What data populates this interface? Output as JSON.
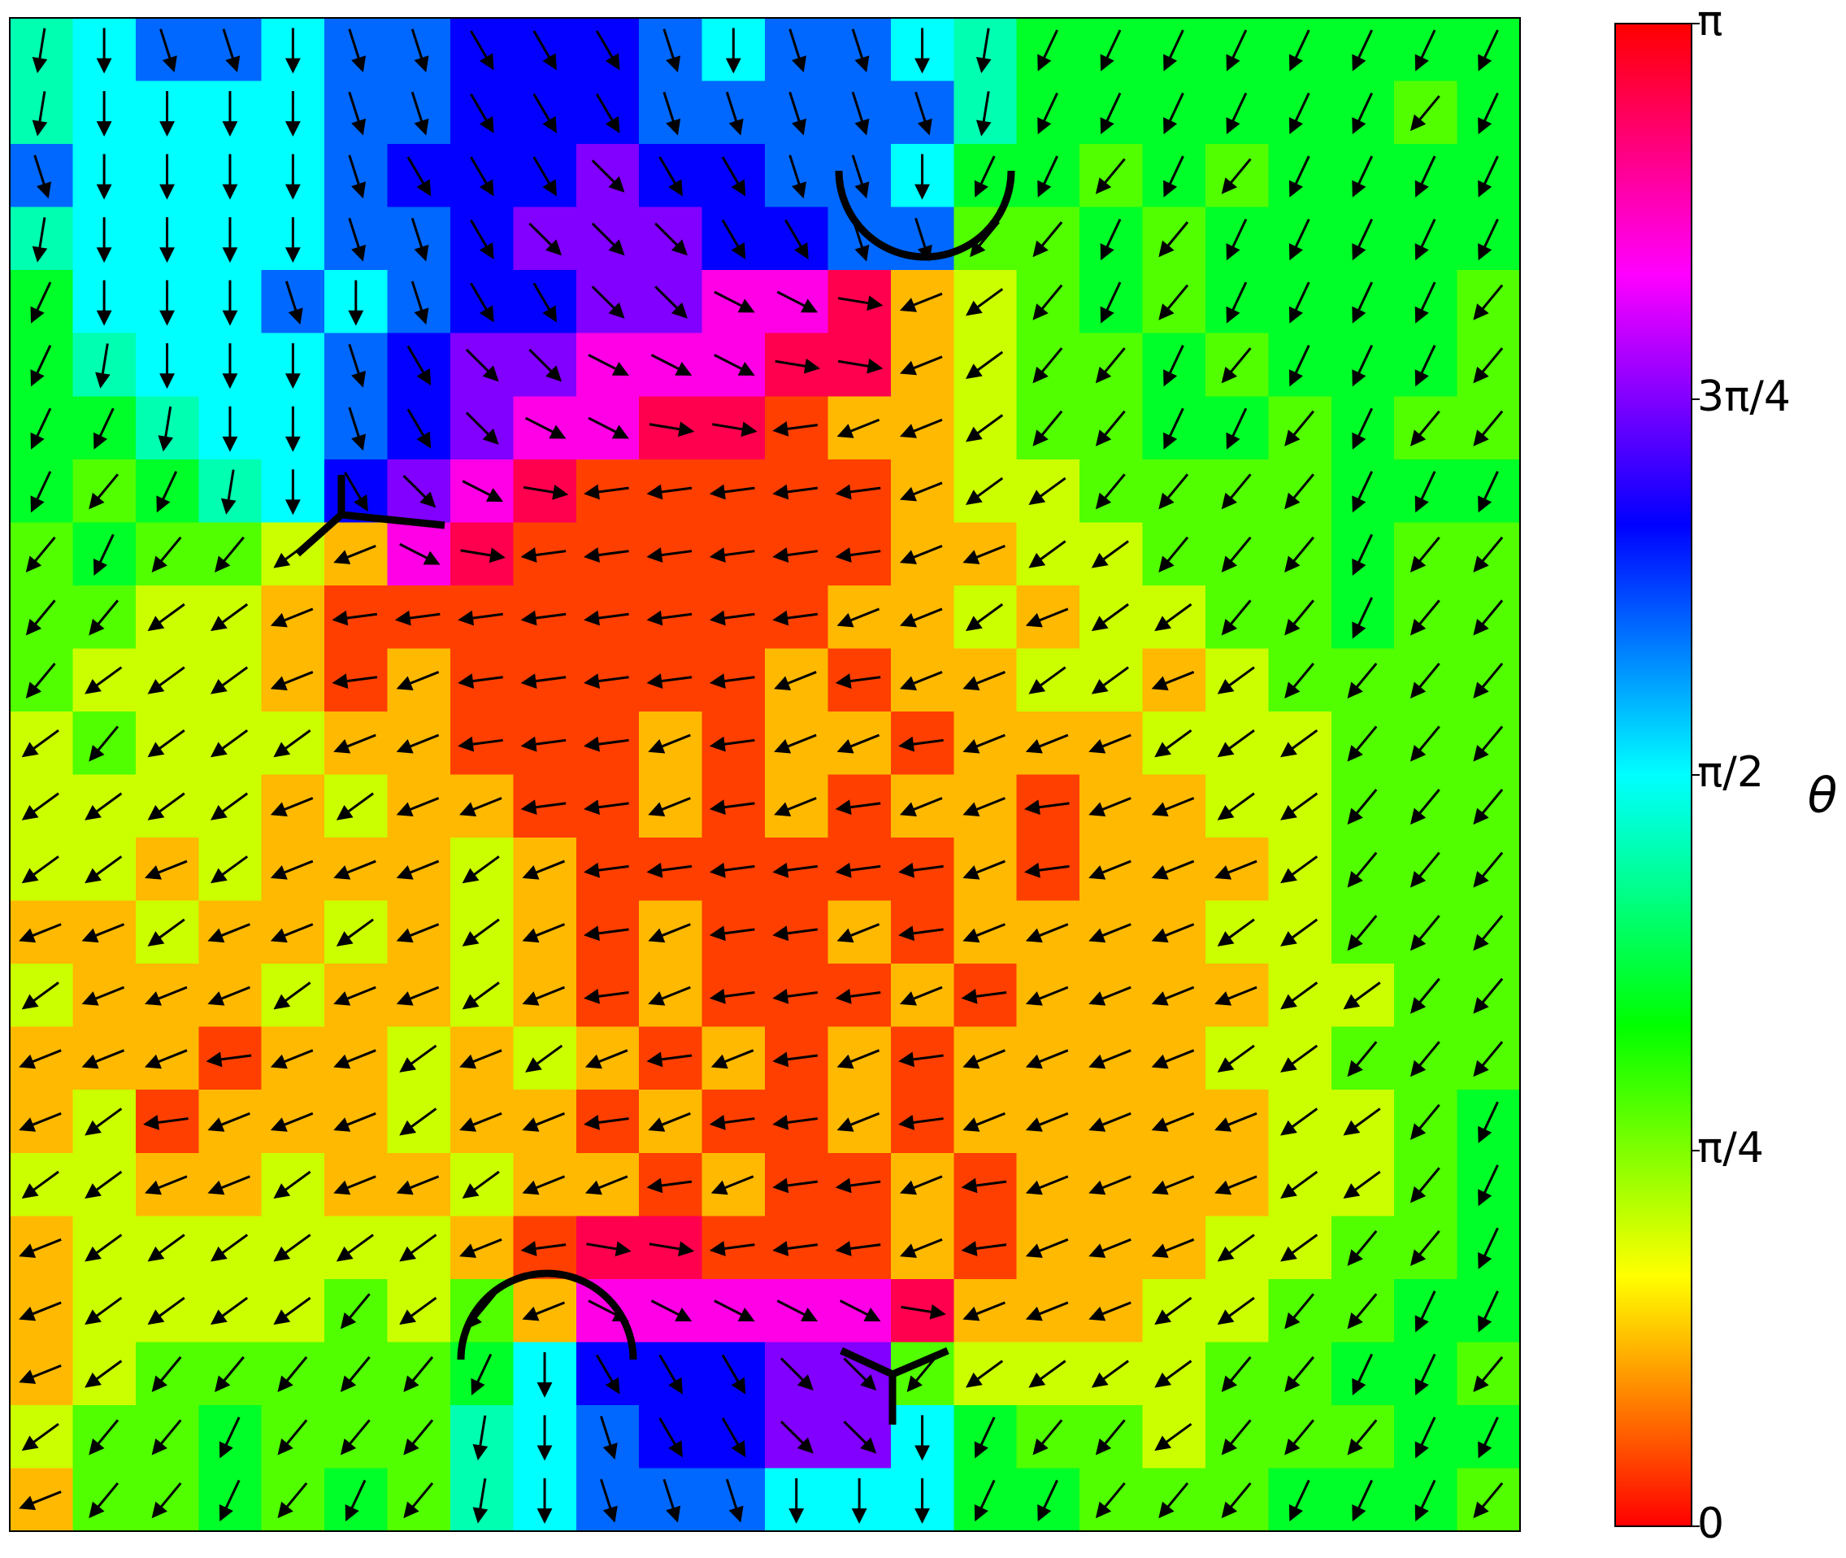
{
  "chart_data": {
    "type": "heatmap",
    "quiver": true,
    "colormap": [
      "#ff0000",
      "#ffff00",
      "#00ff00",
      "#00ffff",
      "#0000ff",
      "#ff00ff",
      "#ff0000"
    ],
    "clim": [
      0,
      3.1416
    ],
    "colorbar": {
      "label": "θ",
      "ticks": [
        0,
        {
          "value": 0.7854,
          "label": "π/4"
        },
        {
          "value": 1.5708,
          "label": "π/2"
        },
        {
          "value": 2.3562,
          "label": "3π/4"
        },
        {
          "value": 3.1416,
          "label": "π"
        }
      ]
    },
    "values": [
      [
        1.41,
        1.57,
        1.88,
        1.88,
        1.57,
        1.88,
        1.88,
        2.1,
        2.1,
        2.1,
        1.88,
        1.57,
        1.88,
        1.88,
        1.57,
        1.41,
        1.13,
        1.13,
        1.13,
        1.13,
        1.13,
        1.13,
        1.13,
        1.13
      ],
      [
        1.41,
        1.57,
        1.57,
        1.57,
        1.57,
        1.88,
        1.88,
        2.1,
        2.1,
        2.1,
        1.88,
        1.88,
        1.88,
        1.88,
        1.88,
        1.41,
        1.13,
        1.13,
        1.13,
        1.13,
        1.13,
        1.13,
        0.88,
        1.13
      ],
      [
        1.88,
        1.57,
        1.57,
        1.57,
        1.57,
        1.88,
        2.1,
        2.1,
        2.1,
        2.36,
        2.1,
        2.1,
        1.88,
        1.88,
        1.57,
        1.13,
        1.13,
        0.88,
        1.13,
        0.88,
        1.13,
        1.13,
        1.13,
        1.13
      ],
      [
        1.41,
        1.57,
        1.57,
        1.57,
        1.57,
        1.88,
        1.88,
        2.1,
        2.36,
        2.36,
        2.36,
        2.1,
        2.1,
        1.88,
        1.88,
        0.88,
        0.88,
        1.13,
        0.88,
        1.13,
        1.13,
        1.13,
        1.13,
        1.13
      ],
      [
        1.13,
        1.57,
        1.57,
        1.57,
        1.88,
        1.57,
        1.88,
        2.1,
        2.1,
        2.36,
        2.36,
        2.67,
        2.67,
        2.98,
        0.38,
        0.63,
        0.88,
        1.13,
        0.88,
        1.13,
        1.13,
        1.13,
        1.13,
        0.88
      ],
      [
        1.13,
        1.41,
        1.57,
        1.57,
        1.57,
        1.88,
        2.1,
        2.36,
        2.36,
        2.67,
        2.67,
        2.67,
        2.98,
        2.98,
        0.38,
        0.63,
        0.88,
        0.88,
        1.13,
        0.88,
        1.13,
        1.13,
        1.13,
        0.88
      ],
      [
        1.13,
        1.13,
        1.41,
        1.57,
        1.57,
        1.88,
        2.1,
        2.36,
        2.67,
        2.67,
        2.98,
        2.98,
        0.13,
        0.38,
        0.38,
        0.63,
        0.88,
        0.88,
        1.13,
        1.13,
        0.88,
        1.13,
        0.88,
        0.88
      ],
      [
        1.13,
        0.88,
        1.13,
        1.41,
        1.57,
        2.1,
        2.36,
        2.67,
        2.98,
        0.13,
        0.13,
        0.13,
        0.13,
        0.13,
        0.38,
        0.63,
        0.63,
        0.88,
        0.88,
        0.88,
        0.88,
        1.13,
        1.13,
        1.13
      ],
      [
        0.88,
        1.13,
        0.88,
        0.88,
        0.63,
        0.38,
        2.67,
        2.98,
        0.13,
        0.13,
        0.13,
        0.13,
        0.13,
        0.13,
        0.38,
        0.38,
        0.63,
        0.63,
        0.88,
        0.88,
        0.88,
        1.13,
        0.88,
        0.88
      ],
      [
        0.88,
        0.88,
        0.63,
        0.63,
        0.38,
        0.13,
        0.13,
        0.13,
        0.13,
        0.13,
        0.13,
        0.13,
        0.13,
        0.38,
        0.38,
        0.63,
        0.38,
        0.63,
        0.63,
        0.88,
        0.88,
        1.13,
        0.88,
        0.88
      ],
      [
        0.88,
        0.63,
        0.63,
        0.63,
        0.38,
        0.13,
        0.38,
        0.13,
        0.13,
        0.13,
        0.13,
        0.13,
        0.38,
        0.13,
        0.38,
        0.38,
        0.63,
        0.63,
        0.38,
        0.63,
        0.88,
        0.88,
        0.88,
        0.88
      ],
      [
        0.63,
        0.88,
        0.63,
        0.63,
        0.63,
        0.38,
        0.38,
        0.13,
        0.13,
        0.13,
        0.38,
        0.13,
        0.38,
        0.38,
        0.13,
        0.38,
        0.38,
        0.38,
        0.63,
        0.63,
        0.63,
        0.88,
        0.88,
        0.88
      ],
      [
        0.63,
        0.63,
        0.63,
        0.63,
        0.38,
        0.63,
        0.38,
        0.38,
        0.13,
        0.13,
        0.38,
        0.13,
        0.38,
        0.13,
        0.38,
        0.38,
        0.13,
        0.38,
        0.38,
        0.63,
        0.63,
        0.88,
        0.88,
        0.88
      ],
      [
        0.63,
        0.63,
        0.38,
        0.63,
        0.38,
        0.38,
        0.38,
        0.63,
        0.38,
        0.13,
        0.13,
        0.13,
        0.13,
        0.13,
        0.13,
        0.38,
        0.13,
        0.38,
        0.38,
        0.38,
        0.63,
        0.88,
        0.88,
        0.88
      ],
      [
        0.38,
        0.38,
        0.63,
        0.38,
        0.38,
        0.63,
        0.38,
        0.63,
        0.38,
        0.13,
        0.38,
        0.13,
        0.13,
        0.38,
        0.13,
        0.38,
        0.38,
        0.38,
        0.38,
        0.63,
        0.63,
        0.88,
        0.88,
        0.88
      ],
      [
        0.63,
        0.38,
        0.38,
        0.38,
        0.63,
        0.38,
        0.38,
        0.63,
        0.38,
        0.13,
        0.38,
        0.13,
        0.13,
        0.13,
        0.38,
        0.13,
        0.38,
        0.38,
        0.38,
        0.38,
        0.63,
        0.63,
        0.88,
        0.88
      ],
      [
        0.38,
        0.38,
        0.38,
        0.13,
        0.38,
        0.38,
        0.63,
        0.38,
        0.63,
        0.38,
        0.13,
        0.38,
        0.13,
        0.38,
        0.13,
        0.38,
        0.38,
        0.38,
        0.38,
        0.63,
        0.63,
        0.88,
        0.88,
        0.88
      ],
      [
        0.38,
        0.63,
        0.13,
        0.38,
        0.38,
        0.38,
        0.63,
        0.38,
        0.38,
        0.13,
        0.38,
        0.13,
        0.13,
        0.38,
        0.13,
        0.38,
        0.38,
        0.38,
        0.38,
        0.38,
        0.63,
        0.63,
        0.88,
        1.13
      ],
      [
        0.63,
        0.63,
        0.38,
        0.38,
        0.63,
        0.38,
        0.38,
        0.63,
        0.38,
        0.38,
        0.13,
        0.38,
        0.13,
        0.13,
        0.38,
        0.13,
        0.38,
        0.38,
        0.38,
        0.38,
        0.63,
        0.63,
        0.88,
        1.13
      ],
      [
        0.38,
        0.63,
        0.63,
        0.63,
        0.63,
        0.63,
        0.63,
        0.38,
        0.13,
        2.98,
        2.98,
        0.13,
        0.13,
        0.13,
        0.38,
        0.13,
        0.38,
        0.38,
        0.38,
        0.63,
        0.63,
        0.88,
        0.88,
        1.13
      ],
      [
        0.38,
        0.63,
        0.63,
        0.63,
        0.63,
        0.88,
        0.63,
        0.88,
        0.38,
        2.67,
        2.67,
        2.67,
        2.67,
        2.67,
        2.98,
        0.38,
        0.38,
        0.38,
        0.63,
        0.63,
        0.88,
        0.88,
        1.13,
        1.13
      ],
      [
        0.38,
        0.63,
        0.88,
        0.88,
        0.88,
        0.88,
        0.88,
        1.13,
        1.57,
        2.1,
        2.1,
        2.1,
        2.36,
        2.36,
        0.88,
        0.63,
        0.63,
        0.63,
        0.63,
        0.88,
        0.88,
        1.13,
        1.13,
        0.88
      ],
      [
        0.63,
        0.88,
        0.88,
        1.13,
        0.88,
        0.88,
        0.88,
        1.41,
        1.57,
        1.88,
        2.1,
        2.1,
        2.36,
        2.36,
        1.57,
        1.13,
        0.88,
        0.88,
        0.63,
        0.88,
        0.88,
        0.88,
        1.13,
        1.13
      ],
      [
        0.38,
        0.88,
        0.88,
        1.13,
        0.88,
        1.13,
        0.88,
        1.41,
        1.57,
        1.88,
        1.88,
        1.88,
        1.57,
        1.57,
        1.57,
        1.13,
        1.13,
        0.88,
        0.88,
        0.88,
        1.13,
        1.13,
        1.13,
        0.88
      ]
    ]
  }
}
